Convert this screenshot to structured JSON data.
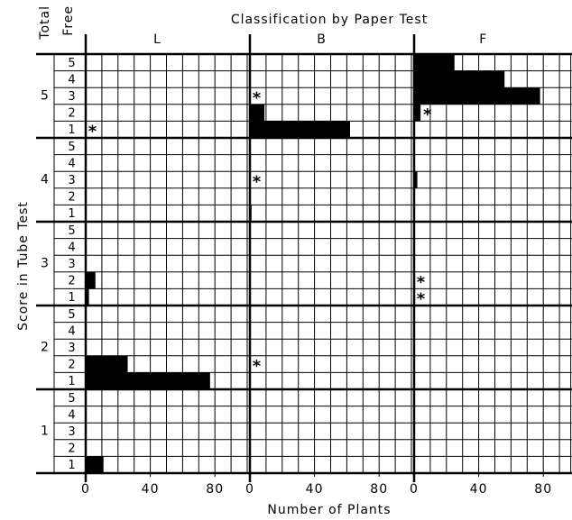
{
  "chart_data": {
    "type": "bar",
    "orientation": "horizontal",
    "title": "Classification by Paper Test",
    "y_label": "Score in Tube Test",
    "x_label": "Number of Plants",
    "total_header": "Total",
    "free_header": "Free",
    "totals": [
      5,
      4,
      3,
      2,
      1
    ],
    "frees": [
      5,
      4,
      3,
      2,
      1
    ],
    "color": "#000000",
    "grid": true,
    "xticks": [
      0,
      40,
      80
    ],
    "xgrid": [
      0,
      10,
      20,
      30,
      40,
      50,
      60,
      70,
      80,
      90
    ],
    "panels": [
      {
        "name": "L",
        "xlim": [
          0,
          100
        ],
        "values": [
          [
            0,
            0,
            0,
            0,
            0
          ],
          [
            0,
            0,
            0,
            0,
            0
          ],
          [
            0,
            0,
            0,
            6,
            2
          ],
          [
            0,
            0,
            0,
            26,
            77
          ],
          [
            0,
            0,
            0,
            0,
            11
          ]
        ],
        "markers": [
          {
            "total": 5,
            "free": 1,
            "label": "*"
          }
        ]
      },
      {
        "name": "B",
        "xlim": [
          0,
          100
        ],
        "values": [
          [
            0,
            0,
            0,
            9,
            62
          ],
          [
            0,
            0,
            0,
            0,
            1
          ],
          [
            0,
            0,
            0,
            0,
            0
          ],
          [
            0,
            0,
            0,
            0,
            0
          ],
          [
            0,
            0,
            0,
            0,
            0
          ]
        ],
        "markers": [
          {
            "total": 5,
            "free": 3,
            "label": "*"
          },
          {
            "total": 4,
            "free": 3,
            "label": "*"
          },
          {
            "total": 2,
            "free": 2,
            "label": "*"
          }
        ]
      },
      {
        "name": "F",
        "xlim": [
          0,
          97
        ],
        "values": [
          [
            25,
            56,
            78,
            4,
            0
          ],
          [
            0,
            0,
            2,
            0,
            0
          ],
          [
            0,
            0,
            0,
            0,
            0
          ],
          [
            0,
            0,
            0,
            0,
            0
          ],
          [
            0,
            0,
            0,
            0,
            0
          ]
        ],
        "markers": [
          {
            "total": 5,
            "free": 2,
            "label": "*"
          },
          {
            "total": 3,
            "free": 2,
            "label": "*"
          },
          {
            "total": 3,
            "free": 1,
            "label": "*"
          }
        ]
      }
    ]
  }
}
